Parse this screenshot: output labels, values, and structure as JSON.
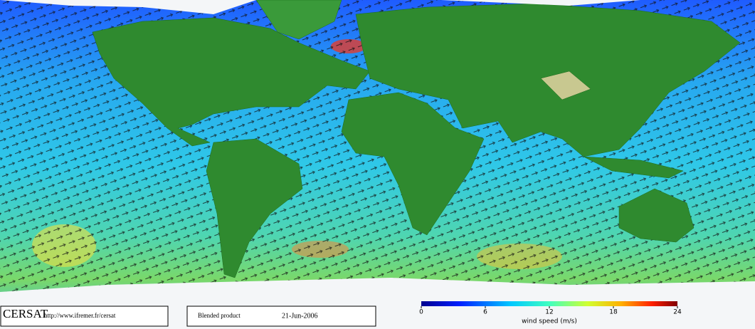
{
  "header": {
    "logo": "CERSAT",
    "url": "http://www.ifremer.fr/cersat",
    "product": "Blended product",
    "date": "21-Jun-2006"
  },
  "colorbar": {
    "label": "wind speed (m/s)",
    "range": [
      0,
      24
    ],
    "ticks": [
      0,
      6,
      12,
      18,
      24
    ]
  }
}
